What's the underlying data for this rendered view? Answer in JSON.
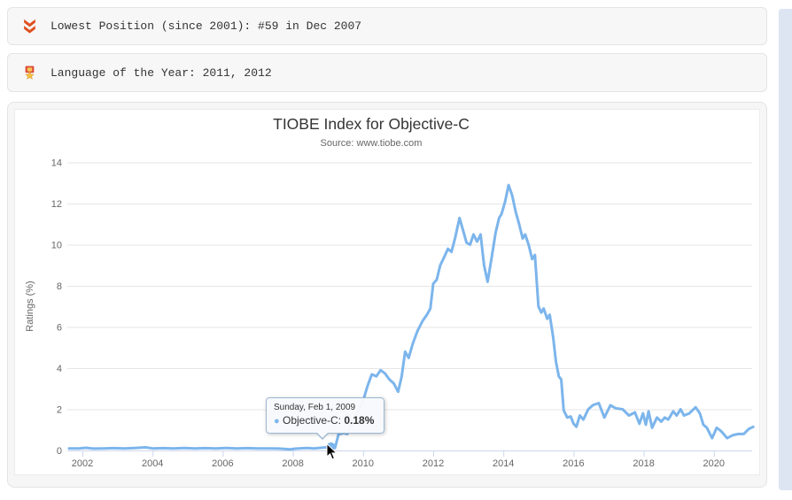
{
  "info_bars": [
    {
      "icon": "double-chevron-down",
      "text": "Lowest Position (since 2001): #59 in Dec 2007"
    },
    {
      "icon": "medal",
      "text": "Language of the Year: 2011, 2012"
    }
  ],
  "chart": {
    "title": "TIOBE Index for Objective-C",
    "subtitle": "Source: www.tiobe.com",
    "y_axis_title": "Ratings (%)"
  },
  "tooltip": {
    "date_label": "Sunday, Feb 1, 2009",
    "series_label": "Objective-C:",
    "value_label": "0.18%",
    "bullet": "●"
  },
  "colors": {
    "series_blue": "#7cb5ec",
    "gridline": "#e6e6e6",
    "axis_line": "#ccd6eb",
    "axis_text": "#666666",
    "info_icon_red": "#e04f1f",
    "medal_red": "#dd4b39",
    "medal_gold": "#f5c242"
  },
  "chart_data": {
    "type": "line",
    "title": "TIOBE Index for Objective-C",
    "subtitle": "Source: www.tiobe.com",
    "xlabel": "",
    "ylabel": "Ratings (%)",
    "legend_position": "none",
    "grid": "horizontal",
    "xlim": [
      2001.6,
      2021.15
    ],
    "ylim": [
      0,
      14
    ],
    "x_ticks": [
      2002,
      2004,
      2006,
      2008,
      2010,
      2012,
      2014,
      2016,
      2018,
      2020
    ],
    "y_ticks": [
      0,
      2,
      4,
      6,
      8,
      10,
      12,
      14
    ],
    "series": [
      {
        "name": "Objective-C",
        "color": "#7cb5ec",
        "points": [
          [
            2001.62,
            0.1
          ],
          [
            2001.9,
            0.1
          ],
          [
            2002.1,
            0.13
          ],
          [
            2002.3,
            0.09
          ],
          [
            2002.6,
            0.1
          ],
          [
            2002.9,
            0.11
          ],
          [
            2003.2,
            0.1
          ],
          [
            2003.5,
            0.12
          ],
          [
            2003.8,
            0.15
          ],
          [
            2004.0,
            0.1
          ],
          [
            2004.3,
            0.11
          ],
          [
            2004.6,
            0.1
          ],
          [
            2004.9,
            0.12
          ],
          [
            2005.2,
            0.1
          ],
          [
            2005.5,
            0.11
          ],
          [
            2005.8,
            0.1
          ],
          [
            2006.1,
            0.12
          ],
          [
            2006.4,
            0.1
          ],
          [
            2006.7,
            0.11
          ],
          [
            2007.0,
            0.1
          ],
          [
            2007.3,
            0.1
          ],
          [
            2007.6,
            0.09
          ],
          [
            2007.92,
            0.05
          ],
          [
            2008.1,
            0.09
          ],
          [
            2008.4,
            0.12
          ],
          [
            2008.6,
            0.1
          ],
          [
            2008.8,
            0.13
          ],
          [
            2008.95,
            0.15
          ],
          [
            2009.085,
            0.18
          ],
          [
            2009.2,
            0.12
          ],
          [
            2009.3,
            0.78
          ],
          [
            2009.45,
            0.85
          ],
          [
            2009.55,
            0.8
          ],
          [
            2009.7,
            1.4
          ],
          [
            2009.85,
            1.9
          ],
          [
            2010.0,
            2.4
          ],
          [
            2010.12,
            3.1
          ],
          [
            2010.25,
            3.7
          ],
          [
            2010.38,
            3.6
          ],
          [
            2010.5,
            3.9
          ],
          [
            2010.62,
            3.75
          ],
          [
            2010.75,
            3.45
          ],
          [
            2010.88,
            3.25
          ],
          [
            2011.0,
            2.85
          ],
          [
            2011.1,
            3.6
          ],
          [
            2011.2,
            4.8
          ],
          [
            2011.3,
            4.5
          ],
          [
            2011.42,
            5.2
          ],
          [
            2011.55,
            5.8
          ],
          [
            2011.7,
            6.3
          ],
          [
            2011.82,
            6.6
          ],
          [
            2011.92,
            6.9
          ],
          [
            2012.0,
            8.1
          ],
          [
            2012.1,
            8.3
          ],
          [
            2012.2,
            9.0
          ],
          [
            2012.3,
            9.35
          ],
          [
            2012.42,
            9.8
          ],
          [
            2012.52,
            9.65
          ],
          [
            2012.62,
            10.3
          ],
          [
            2012.75,
            11.3
          ],
          [
            2012.85,
            10.7
          ],
          [
            2012.95,
            10.1
          ],
          [
            2013.05,
            10.0
          ],
          [
            2013.15,
            10.5
          ],
          [
            2013.25,
            10.15
          ],
          [
            2013.35,
            10.5
          ],
          [
            2013.45,
            9.0
          ],
          [
            2013.55,
            8.2
          ],
          [
            2013.65,
            9.2
          ],
          [
            2013.78,
            10.6
          ],
          [
            2013.88,
            11.3
          ],
          [
            2013.95,
            11.5
          ],
          [
            2014.05,
            12.1
          ],
          [
            2014.15,
            12.9
          ],
          [
            2014.25,
            12.4
          ],
          [
            2014.35,
            11.6
          ],
          [
            2014.45,
            11.0
          ],
          [
            2014.55,
            10.3
          ],
          [
            2014.62,
            10.5
          ],
          [
            2014.72,
            10.0
          ],
          [
            2014.82,
            9.3
          ],
          [
            2014.9,
            9.5
          ],
          [
            2015.0,
            7.0
          ],
          [
            2015.08,
            6.7
          ],
          [
            2015.15,
            6.9
          ],
          [
            2015.25,
            6.4
          ],
          [
            2015.32,
            6.6
          ],
          [
            2015.42,
            5.5
          ],
          [
            2015.5,
            4.3
          ],
          [
            2015.58,
            3.6
          ],
          [
            2015.65,
            3.45
          ],
          [
            2015.72,
            1.95
          ],
          [
            2015.82,
            1.6
          ],
          [
            2015.92,
            1.65
          ],
          [
            2016.0,
            1.3
          ],
          [
            2016.08,
            1.15
          ],
          [
            2016.18,
            1.7
          ],
          [
            2016.28,
            1.5
          ],
          [
            2016.42,
            2.0
          ],
          [
            2016.55,
            2.2
          ],
          [
            2016.72,
            2.3
          ],
          [
            2016.88,
            1.6
          ],
          [
            2017.05,
            2.2
          ],
          [
            2017.2,
            2.05
          ],
          [
            2017.4,
            2.0
          ],
          [
            2017.58,
            1.7
          ],
          [
            2017.75,
            1.85
          ],
          [
            2017.88,
            1.3
          ],
          [
            2017.98,
            1.8
          ],
          [
            2018.06,
            1.25
          ],
          [
            2018.14,
            1.9
          ],
          [
            2018.24,
            1.1
          ],
          [
            2018.38,
            1.6
          ],
          [
            2018.5,
            1.4
          ],
          [
            2018.6,
            1.6
          ],
          [
            2018.7,
            1.5
          ],
          [
            2018.84,
            1.9
          ],
          [
            2018.94,
            1.7
          ],
          [
            2019.05,
            2.0
          ],
          [
            2019.15,
            1.7
          ],
          [
            2019.3,
            1.8
          ],
          [
            2019.48,
            2.1
          ],
          [
            2019.6,
            1.8
          ],
          [
            2019.7,
            1.25
          ],
          [
            2019.8,
            1.1
          ],
          [
            2019.95,
            0.6
          ],
          [
            2020.08,
            1.1
          ],
          [
            2020.2,
            0.95
          ],
          [
            2020.38,
            0.6
          ],
          [
            2020.55,
            0.75
          ],
          [
            2020.7,
            0.8
          ],
          [
            2020.85,
            0.8
          ],
          [
            2021.0,
            1.05
          ],
          [
            2021.12,
            1.15
          ]
        ]
      }
    ],
    "highlight_point": {
      "x": 2009.085,
      "y": 0.18,
      "date": "Sunday, Feb 1, 2009",
      "value_label": "0.18%"
    }
  }
}
